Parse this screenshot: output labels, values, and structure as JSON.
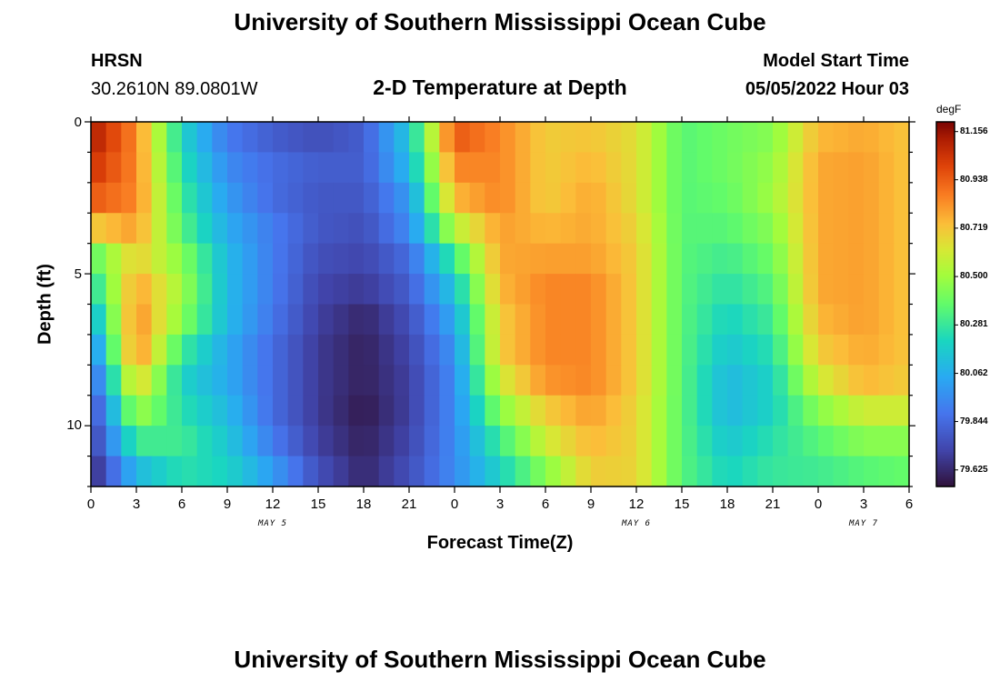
{
  "page": {
    "title": "University of Southern Mississippi Ocean Cube",
    "footer_title": "University of Southern Mississippi Ocean Cube",
    "station": "HRSN",
    "coordinates": "30.2610N  89.0801W",
    "plot_title": "2-D Temperature at Depth",
    "model_start_label": "Model Start Time",
    "model_start_value": "05/05/2022 Hour 03"
  },
  "chart_data": {
    "type": "heatmap",
    "title": "2-D Temperature at Depth",
    "xlabel": "Forecast Time(Z)",
    "ylabel": "Depth (ft)",
    "x_start_hour": 0,
    "x_end_hour": 54,
    "y_range": [
      0,
      12
    ],
    "y_ticks": [
      "0",
      "5",
      "10"
    ],
    "x_tick_labels": [
      "0",
      "3",
      "6",
      "9",
      "12",
      "15",
      "18",
      "21",
      "0",
      "3",
      "6",
      "9",
      "12",
      "15",
      "18",
      "21",
      "0",
      "3",
      "6"
    ],
    "date_labels": [
      "MAY 5",
      "MAY 6",
      "MAY 7"
    ],
    "date_label_hours": [
      12,
      36,
      51
    ],
    "colorbar": {
      "unit": "degF",
      "min": 79.55,
      "max": 81.2,
      "tick_values": [
        "81.156",
        "80.938",
        "80.719",
        "80.500",
        "80.281",
        "80.062",
        "79.844",
        "79.625"
      ]
    },
    "time_series_hours": [
      0,
      3,
      6,
      9,
      12,
      15,
      18,
      21,
      24,
      27,
      30,
      33,
      36,
      39,
      42,
      45,
      48,
      51,
      54
    ],
    "depth_rows_ft": [
      0.5,
      1.5,
      2.5,
      3.5,
      4.5,
      5.5,
      6.5,
      7.5,
      8.5,
      9.5,
      10.5,
      11.5
    ],
    "temperature_grid_degF": [
      [
        81.12,
        80.85,
        80.2,
        79.9,
        79.8,
        79.75,
        79.8,
        80.15,
        80.95,
        80.85,
        80.7,
        80.72,
        80.65,
        80.35,
        80.4,
        80.45,
        80.75,
        80.78,
        80.72
      ],
      [
        81.05,
        80.85,
        80.25,
        79.95,
        79.85,
        79.8,
        79.8,
        80.1,
        80.85,
        80.85,
        80.7,
        80.75,
        80.65,
        80.35,
        80.4,
        80.48,
        80.78,
        80.8,
        80.72
      ],
      [
        80.95,
        80.85,
        80.3,
        80.0,
        79.85,
        79.78,
        79.78,
        80.0,
        80.75,
        80.85,
        80.7,
        80.78,
        80.65,
        80.35,
        80.38,
        80.5,
        80.78,
        80.8,
        80.72
      ],
      [
        80.7,
        80.8,
        80.35,
        80.05,
        79.9,
        79.78,
        79.75,
        79.95,
        80.55,
        80.8,
        80.75,
        80.78,
        80.68,
        80.35,
        80.35,
        80.45,
        80.78,
        80.8,
        80.72
      ],
      [
        80.35,
        80.7,
        80.45,
        80.1,
        79.9,
        79.75,
        79.72,
        79.85,
        80.3,
        80.78,
        80.8,
        80.8,
        80.7,
        80.35,
        80.3,
        80.4,
        80.78,
        80.8,
        80.72
      ],
      [
        80.2,
        80.8,
        80.5,
        80.1,
        79.9,
        79.72,
        79.68,
        79.8,
        80.15,
        80.75,
        80.85,
        80.85,
        80.7,
        80.35,
        80.25,
        80.35,
        80.78,
        80.8,
        80.72
      ],
      [
        80.05,
        80.85,
        80.45,
        80.1,
        79.88,
        79.7,
        79.62,
        79.75,
        80.05,
        80.7,
        80.85,
        80.85,
        80.7,
        80.35,
        80.2,
        80.3,
        80.75,
        80.8,
        80.72
      ],
      [
        79.9,
        80.85,
        80.3,
        80.05,
        79.85,
        79.68,
        79.6,
        79.72,
        79.98,
        80.7,
        80.85,
        80.85,
        80.7,
        80.35,
        80.15,
        80.25,
        80.7,
        80.78,
        80.72
      ],
      [
        79.8,
        80.7,
        80.2,
        80.05,
        79.85,
        79.68,
        79.6,
        79.7,
        79.95,
        80.6,
        80.82,
        80.85,
        80.7,
        80.35,
        80.1,
        80.2,
        80.6,
        80.75,
        80.7
      ],
      [
        79.72,
        80.5,
        80.25,
        80.1,
        79.85,
        79.68,
        79.58,
        79.7,
        79.95,
        80.45,
        80.7,
        80.8,
        80.68,
        80.35,
        80.1,
        80.2,
        80.45,
        80.6,
        80.6
      ],
      [
        79.68,
        80.3,
        80.3,
        80.15,
        79.9,
        79.7,
        79.6,
        79.72,
        79.95,
        80.3,
        80.6,
        80.75,
        80.68,
        80.35,
        80.15,
        80.25,
        80.35,
        80.45,
        80.45
      ],
      [
        79.62,
        80.1,
        80.25,
        80.2,
        80.0,
        79.75,
        79.62,
        79.75,
        79.95,
        80.2,
        80.45,
        80.7,
        80.68,
        80.35,
        80.2,
        80.28,
        80.3,
        80.35,
        80.38
      ]
    ]
  }
}
